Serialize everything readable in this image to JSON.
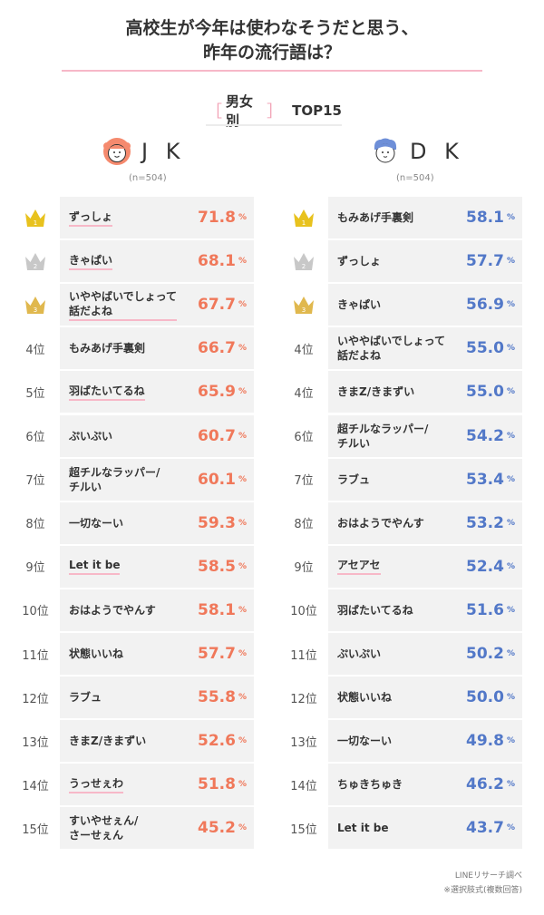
{
  "title_line1": "高校生が今年は使わなそうだと思う、",
  "title_line2": "昨年の流行語は？",
  "subtitle": {
    "bracket_open": "［",
    "label": "男女別",
    "bracket_close": "］",
    "top": "TOP15"
  },
  "colors": {
    "jk_accent": "#f0785a",
    "dk_accent": "#5278c8",
    "underline_pink": "#f7b8c8",
    "gold": "#e8c21e",
    "silver": "#c8c8c8",
    "bronze": "#e0b84e"
  },
  "percent_sign": "%",
  "rank_suffix": "位",
  "jk": {
    "name": "J K",
    "n": "(n=504)",
    "avatar_icon": "girl-avatar-icon"
  },
  "dk": {
    "name": "D K",
    "n": "(n=504)",
    "avatar_icon": "boy-avatar-icon"
  },
  "footnote_line1": "LINEリサーチ調べ",
  "footnote_line2": "※選択肢式(複数回答)",
  "chart_data": [
    {
      "type": "table",
      "series": "JK",
      "rows": [
        {
          "rank": 1,
          "rank_label": "1",
          "label_lines": [
            "ずっしょ"
          ],
          "value": 71.8,
          "display": "71.8",
          "underline": true
        },
        {
          "rank": 2,
          "rank_label": "2",
          "label_lines": [
            "きゃぱい"
          ],
          "value": 68.1,
          "display": "68.1",
          "underline": true
        },
        {
          "rank": 3,
          "rank_label": "3",
          "label_lines": [
            "いややばいでしょって",
            "話だよね"
          ],
          "value": 67.7,
          "display": "67.7",
          "underline": true
        },
        {
          "rank": 4,
          "rank_label": "4位",
          "label_lines": [
            "もみあげ手裏剣"
          ],
          "value": 66.7,
          "display": "66.7",
          "underline": false
        },
        {
          "rank": 5,
          "rank_label": "5位",
          "label_lines": [
            "羽ばたいてるね"
          ],
          "value": 65.9,
          "display": "65.9",
          "underline": true
        },
        {
          "rank": 6,
          "rank_label": "6位",
          "label_lines": [
            "ぷいぷい"
          ],
          "value": 60.7,
          "display": "60.7",
          "underline": false
        },
        {
          "rank": 7,
          "rank_label": "7位",
          "label_lines": [
            "超チルなラッパー/",
            "チルい"
          ],
          "value": 60.1,
          "display": "60.1",
          "underline": false
        },
        {
          "rank": 8,
          "rank_label": "8位",
          "label_lines": [
            "一切なーい"
          ],
          "value": 59.3,
          "display": "59.3",
          "underline": false
        },
        {
          "rank": 9,
          "rank_label": "9位",
          "label_lines": [
            "Let it be"
          ],
          "value": 58.5,
          "display": "58.5",
          "underline": true
        },
        {
          "rank": 10,
          "rank_label": "10位",
          "label_lines": [
            "おはようでやんす"
          ],
          "value": 58.1,
          "display": "58.1",
          "underline": false
        },
        {
          "rank": 11,
          "rank_label": "11位",
          "label_lines": [
            "状態いいね"
          ],
          "value": 57.7,
          "display": "57.7",
          "underline": false
        },
        {
          "rank": 12,
          "rank_label": "12位",
          "label_lines": [
            "ラブュ"
          ],
          "value": 55.8,
          "display": "55.8",
          "underline": false
        },
        {
          "rank": 13,
          "rank_label": "13位",
          "label_lines": [
            "きまZ/きまずい"
          ],
          "value": 52.6,
          "display": "52.6",
          "underline": false
        },
        {
          "rank": 14,
          "rank_label": "14位",
          "label_lines": [
            "うっせぇわ"
          ],
          "value": 51.8,
          "display": "51.8",
          "underline": true
        },
        {
          "rank": 15,
          "rank_label": "15位",
          "label_lines": [
            "すいやせぇん/",
            "さーせぇん"
          ],
          "value": 45.2,
          "display": "45.2",
          "underline": false
        }
      ]
    },
    {
      "type": "table",
      "series": "DK",
      "rows": [
        {
          "rank": 1,
          "rank_label": "1",
          "label_lines": [
            "もみあげ手裏剣"
          ],
          "value": 58.1,
          "display": "58.1",
          "underline": false
        },
        {
          "rank": 2,
          "rank_label": "2",
          "label_lines": [
            "ずっしょ"
          ],
          "value": 57.7,
          "display": "57.7",
          "underline": false
        },
        {
          "rank": 3,
          "rank_label": "3",
          "label_lines": [
            "きゃぱい"
          ],
          "value": 56.9,
          "display": "56.9",
          "underline": false
        },
        {
          "rank": 4,
          "rank_label": "4位",
          "label_lines": [
            "いややばいでしょって",
            "話だよね"
          ],
          "value": 55.0,
          "display": "55.0",
          "underline": false
        },
        {
          "rank": 4,
          "rank_label": "4位",
          "label_lines": [
            "きまZ/きまずい"
          ],
          "value": 55.0,
          "display": "55.0",
          "underline": false
        },
        {
          "rank": 6,
          "rank_label": "6位",
          "label_lines": [
            "超チルなラッパー/",
            "チルい"
          ],
          "value": 54.2,
          "display": "54.2",
          "underline": false
        },
        {
          "rank": 7,
          "rank_label": "7位",
          "label_lines": [
            "ラブュ"
          ],
          "value": 53.4,
          "display": "53.4",
          "underline": false
        },
        {
          "rank": 8,
          "rank_label": "8位",
          "label_lines": [
            "おはようでやんす"
          ],
          "value": 53.2,
          "display": "53.2",
          "underline": false
        },
        {
          "rank": 9,
          "rank_label": "9位",
          "label_lines": [
            "アセアセ"
          ],
          "value": 52.4,
          "display": "52.4",
          "underline": true
        },
        {
          "rank": 10,
          "rank_label": "10位",
          "label_lines": [
            "羽ばたいてるね"
          ],
          "value": 51.6,
          "display": "51.6",
          "underline": false
        },
        {
          "rank": 11,
          "rank_label": "11位",
          "label_lines": [
            "ぷいぷい"
          ],
          "value": 50.2,
          "display": "50.2",
          "underline": false
        },
        {
          "rank": 12,
          "rank_label": "12位",
          "label_lines": [
            "状態いいね"
          ],
          "value": 50.0,
          "display": "50.0",
          "underline": false
        },
        {
          "rank": 13,
          "rank_label": "13位",
          "label_lines": [
            "一切なーい"
          ],
          "value": 49.8,
          "display": "49.8",
          "underline": false
        },
        {
          "rank": 14,
          "rank_label": "14位",
          "label_lines": [
            "ちゅきちゅき"
          ],
          "value": 46.2,
          "display": "46.2",
          "underline": false
        },
        {
          "rank": 15,
          "rank_label": "15位",
          "label_lines": [
            "Let it be"
          ],
          "value": 43.7,
          "display": "43.7",
          "underline": false
        }
      ]
    }
  ]
}
